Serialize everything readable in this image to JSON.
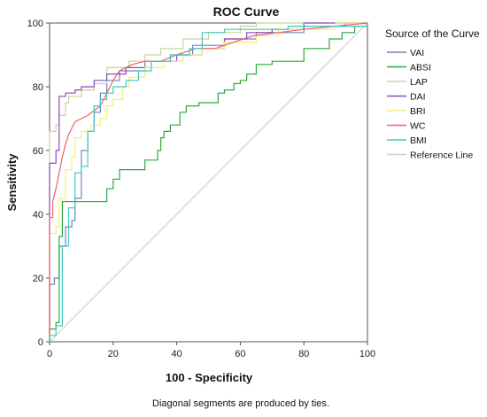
{
  "chart_data": {
    "type": "line",
    "title": "ROC Curve",
    "xlabel": "100 - Specificity",
    "ylabel": "Sensitivity",
    "xlim": [
      0,
      100
    ],
    "ylim": [
      0,
      100
    ],
    "x_ticks": [
      0,
      20,
      40,
      60,
      80,
      100
    ],
    "y_ticks": [
      0,
      20,
      40,
      60,
      80,
      100
    ],
    "grid": false,
    "legend_title": "Source of the Curve",
    "legend_placement": "right",
    "footnote": "Diagonal segments are produced by ties.",
    "series": [
      {
        "name": "VAI",
        "color": "#6f85b8",
        "points": [
          [
            0,
            0
          ],
          [
            0,
            18
          ],
          [
            1.5,
            18
          ],
          [
            1.5,
            20
          ],
          [
            3,
            20
          ],
          [
            3,
            30
          ],
          [
            5,
            30
          ],
          [
            5,
            36
          ],
          [
            7,
            36
          ],
          [
            7,
            38
          ],
          [
            8,
            38
          ],
          [
            8,
            45
          ],
          [
            10,
            45
          ],
          [
            10,
            60
          ],
          [
            12,
            60
          ],
          [
            12,
            66
          ],
          [
            14,
            66
          ],
          [
            14,
            72
          ],
          [
            16,
            72
          ],
          [
            16,
            78
          ],
          [
            18,
            78
          ],
          [
            18,
            82
          ],
          [
            22,
            82
          ],
          [
            22,
            85
          ],
          [
            30,
            85
          ],
          [
            30,
            88
          ],
          [
            38,
            88
          ],
          [
            38,
            90
          ],
          [
            45,
            90
          ],
          [
            45,
            93
          ],
          [
            55,
            93
          ],
          [
            55,
            95
          ],
          [
            65,
            95
          ],
          [
            65,
            97
          ],
          [
            80,
            97
          ],
          [
            80,
            99
          ],
          [
            93,
            99
          ],
          [
            93,
            100
          ],
          [
            100,
            100
          ]
        ]
      },
      {
        "name": "ABSI",
        "color": "#2eaa3f",
        "points": [
          [
            0,
            0
          ],
          [
            0,
            4
          ],
          [
            2,
            4
          ],
          [
            2,
            6
          ],
          [
            3,
            6
          ],
          [
            3,
            33
          ],
          [
            4,
            33
          ],
          [
            4,
            44
          ],
          [
            18,
            44
          ],
          [
            18,
            48
          ],
          [
            20,
            48
          ],
          [
            20,
            51
          ],
          [
            22,
            51
          ],
          [
            22,
            54
          ],
          [
            30,
            54
          ],
          [
            30,
            57
          ],
          [
            34,
            57
          ],
          [
            34,
            60
          ],
          [
            35,
            60
          ],
          [
            35,
            64
          ],
          [
            36,
            64
          ],
          [
            36,
            66
          ],
          [
            38,
            66
          ],
          [
            38,
            68
          ],
          [
            41,
            68
          ],
          [
            41,
            72
          ],
          [
            43,
            72
          ],
          [
            43,
            74
          ],
          [
            47,
            74
          ],
          [
            47,
            75
          ],
          [
            53,
            75
          ],
          [
            53,
            78
          ],
          [
            55,
            78
          ],
          [
            55,
            79
          ],
          [
            58,
            79
          ],
          [
            58,
            81
          ],
          [
            60,
            81
          ],
          [
            60,
            82
          ],
          [
            62,
            82
          ],
          [
            62,
            84
          ],
          [
            65,
            84
          ],
          [
            65,
            87
          ],
          [
            70,
            87
          ],
          [
            70,
            88
          ],
          [
            80,
            88
          ],
          [
            80,
            92
          ],
          [
            88,
            92
          ],
          [
            88,
            95
          ],
          [
            92,
            95
          ],
          [
            92,
            97
          ],
          [
            96,
            97
          ],
          [
            96,
            99
          ],
          [
            100,
            99
          ]
        ]
      },
      {
        "name": "LAP",
        "color": "#c8d49a",
        "points": [
          [
            0,
            0
          ],
          [
            0,
            66
          ],
          [
            2,
            66
          ],
          [
            2,
            68
          ],
          [
            3,
            68
          ],
          [
            3,
            71
          ],
          [
            5,
            71
          ],
          [
            5,
            75
          ],
          [
            6,
            75
          ],
          [
            6,
            77
          ],
          [
            10,
            77
          ],
          [
            10,
            79
          ],
          [
            14,
            79
          ],
          [
            14,
            81
          ],
          [
            18,
            81
          ],
          [
            18,
            86
          ],
          [
            25,
            86
          ],
          [
            25,
            88
          ],
          [
            30,
            88
          ],
          [
            30,
            90
          ],
          [
            35,
            90
          ],
          [
            35,
            92
          ],
          [
            42,
            92
          ],
          [
            42,
            95
          ],
          [
            50,
            95
          ],
          [
            50,
            97
          ],
          [
            60,
            97
          ],
          [
            60,
            99
          ],
          [
            65,
            99
          ],
          [
            65,
            100
          ],
          [
            100,
            100
          ]
        ]
      },
      {
        "name": "DAI",
        "color": "#8e4bbd",
        "points": [
          [
            0,
            0
          ],
          [
            0,
            56
          ],
          [
            2,
            56
          ],
          [
            2,
            60
          ],
          [
            3,
            60
          ],
          [
            3,
            77
          ],
          [
            5,
            77
          ],
          [
            5,
            78
          ],
          [
            8,
            78
          ],
          [
            8,
            79
          ],
          [
            10,
            79
          ],
          [
            10,
            80
          ],
          [
            14,
            80
          ],
          [
            14,
            82
          ],
          [
            18,
            82
          ],
          [
            18,
            84
          ],
          [
            24,
            84
          ],
          [
            24,
            86
          ],
          [
            32,
            86
          ],
          [
            32,
            88
          ],
          [
            40,
            88
          ],
          [
            40,
            90
          ],
          [
            48,
            90
          ],
          [
            48,
            92
          ],
          [
            55,
            92
          ],
          [
            55,
            95
          ],
          [
            62,
            95
          ],
          [
            62,
            97
          ],
          [
            70,
            97
          ],
          [
            70,
            98
          ],
          [
            80,
            98
          ],
          [
            80,
            100
          ],
          [
            100,
            100
          ]
        ]
      },
      {
        "name": "BRI",
        "color": "#f2ee7a",
        "points": [
          [
            0,
            0
          ],
          [
            0,
            34
          ],
          [
            2,
            34
          ],
          [
            2,
            36
          ],
          [
            3,
            36
          ],
          [
            3,
            45
          ],
          [
            5,
            45
          ],
          [
            5,
            54
          ],
          [
            7,
            54
          ],
          [
            7,
            58
          ],
          [
            8,
            58
          ],
          [
            8,
            64
          ],
          [
            10,
            64
          ],
          [
            10,
            66
          ],
          [
            13,
            66
          ],
          [
            13,
            68
          ],
          [
            16,
            68
          ],
          [
            16,
            70
          ],
          [
            18,
            70
          ],
          [
            18,
            74
          ],
          [
            20,
            74
          ],
          [
            20,
            76
          ],
          [
            23,
            76
          ],
          [
            23,
            80
          ],
          [
            25,
            80
          ],
          [
            25,
            83
          ],
          [
            30,
            83
          ],
          [
            30,
            86
          ],
          [
            36,
            86
          ],
          [
            36,
            88
          ],
          [
            42,
            88
          ],
          [
            42,
            90
          ],
          [
            48,
            90
          ],
          [
            48,
            92
          ],
          [
            55,
            92
          ],
          [
            55,
            94
          ],
          [
            65,
            94
          ],
          [
            65,
            96
          ],
          [
            72,
            96
          ],
          [
            72,
            98
          ],
          [
            90,
            98
          ],
          [
            90,
            100
          ],
          [
            100,
            100
          ]
        ]
      },
      {
        "name": "WC",
        "color": "#f0606b",
        "points": [
          [
            0,
            0
          ],
          [
            0,
            39
          ],
          [
            1,
            39
          ],
          [
            1,
            44
          ],
          [
            2,
            48
          ],
          [
            3,
            53
          ],
          [
            4,
            58
          ],
          [
            5,
            62
          ],
          [
            6,
            65
          ],
          [
            8,
            69
          ],
          [
            12,
            71
          ],
          [
            16,
            74
          ],
          [
            18,
            78
          ],
          [
            20,
            82
          ],
          [
            22,
            85
          ],
          [
            26,
            87
          ],
          [
            30,
            88
          ],
          [
            35,
            88
          ],
          [
            40,
            90
          ],
          [
            46,
            92
          ],
          [
            52,
            92
          ],
          [
            58,
            94
          ],
          [
            64,
            96
          ],
          [
            72,
            97
          ],
          [
            80,
            98
          ],
          [
            90,
            99
          ],
          [
            100,
            100
          ]
        ]
      },
      {
        "name": "BMI",
        "color": "#41c9c0",
        "points": [
          [
            0,
            0
          ],
          [
            0,
            2
          ],
          [
            2,
            2
          ],
          [
            2,
            5
          ],
          [
            4,
            5
          ],
          [
            4,
            30
          ],
          [
            6,
            30
          ],
          [
            6,
            42
          ],
          [
            8,
            42
          ],
          [
            8,
            53
          ],
          [
            10,
            53
          ],
          [
            10,
            55
          ],
          [
            12,
            55
          ],
          [
            12,
            66
          ],
          [
            14,
            66
          ],
          [
            14,
            74
          ],
          [
            16,
            74
          ],
          [
            16,
            76
          ],
          [
            18,
            76
          ],
          [
            18,
            78
          ],
          [
            20,
            78
          ],
          [
            20,
            80
          ],
          [
            24,
            80
          ],
          [
            24,
            82
          ],
          [
            28,
            82
          ],
          [
            28,
            85
          ],
          [
            32,
            85
          ],
          [
            32,
            88
          ],
          [
            38,
            88
          ],
          [
            38,
            90
          ],
          [
            44,
            90
          ],
          [
            44,
            92
          ],
          [
            48,
            92
          ],
          [
            48,
            97
          ],
          [
            55,
            97
          ],
          [
            55,
            98
          ],
          [
            75,
            98
          ],
          [
            75,
            99
          ],
          [
            100,
            99
          ]
        ]
      },
      {
        "name": "Reference Line",
        "color": "#d0d0d0",
        "points": [
          [
            0,
            0
          ],
          [
            100,
            100
          ]
        ]
      }
    ]
  }
}
